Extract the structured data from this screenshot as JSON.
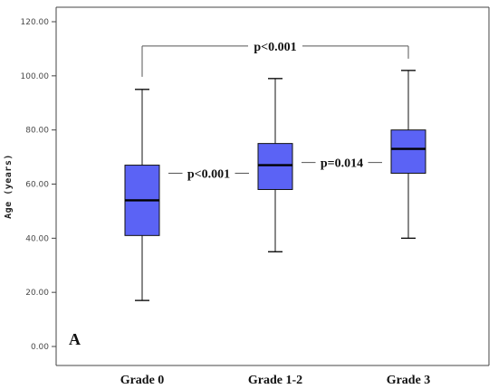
{
  "chart_data": {
    "type": "box",
    "title": "",
    "xlabel": "",
    "ylabel": "Age (years)",
    "ylim": [
      0,
      120
    ],
    "yticks": [
      "0.00",
      "20.00",
      "40.00",
      "60.00",
      "80.00",
      "100.00",
      "120.00"
    ],
    "grid": false,
    "categories": [
      "Grade 0",
      "Grade 1-2",
      "Grade 3"
    ],
    "boxes": [
      {
        "min": 17,
        "q1": 41,
        "median": 54,
        "q3": 67,
        "max": 95
      },
      {
        "min": 35,
        "q1": 58,
        "median": 67,
        "q3": 75,
        "max": 99
      },
      {
        "min": 40,
        "q1": 64,
        "median": 73,
        "q3": 80,
        "max": 102
      }
    ],
    "box_color": "#5b63f5",
    "annotations": {
      "panel_letter": "A",
      "comparisons": [
        {
          "from": 0,
          "to": 2,
          "label": "p<0.001",
          "style": "bracket",
          "y": 111
        },
        {
          "from": 0,
          "to": 1,
          "label": "p<0.001",
          "style": "inline",
          "y": 64
        },
        {
          "from": 1,
          "to": 2,
          "label": "p=0.014",
          "style": "inline",
          "y": 68
        }
      ]
    }
  }
}
